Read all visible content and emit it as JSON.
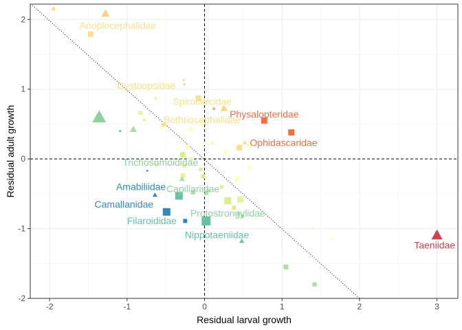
{
  "chart_data": {
    "type": "scatter",
    "title": "",
    "xlabel": "Residual larval growth",
    "ylabel": "Residual adult growth",
    "xlim": [
      -2.25,
      3.27
    ],
    "ylim": [
      -2.0,
      2.22
    ],
    "xticks": [
      -2,
      -1,
      0,
      1,
      2,
      3
    ],
    "yticks": [
      -2,
      -1,
      0,
      1,
      2
    ],
    "x_tick_labels": [
      "-2",
      "-1",
      "0",
      "1",
      "2",
      "3"
    ],
    "y_tick_labels": [
      "-2",
      "-1",
      "0",
      "1",
      "2"
    ],
    "grid": true,
    "legend": "none",
    "reference_lines": {
      "vertical_x": 0,
      "horizontal_y": 0,
      "diagonal": {
        "x": [
          -2.22,
          2.0
        ],
        "y": [
          2.2,
          -2.0
        ],
        "style": "dotted"
      }
    },
    "points": [
      {
        "x": -1.95,
        "y": 2.15,
        "shape": "square",
        "size": 5,
        "color": "#FEE08B"
      },
      {
        "x": -1.28,
        "y": 2.08,
        "shape": "triangle",
        "size": 12,
        "color": "#FDD27A"
      },
      {
        "x": -1.47,
        "y": 1.79,
        "shape": "square",
        "size": 8,
        "color": "#FEE08B"
      },
      {
        "x": -1.36,
        "y": 0.59,
        "shape": "triangle",
        "size": 20,
        "color": "#8FD19E"
      },
      {
        "x": -0.92,
        "y": 0.42,
        "shape": "triangle",
        "size": 10,
        "color": "#ABDDA4"
      },
      {
        "x": -1.09,
        "y": 0.4,
        "shape": "triangle",
        "size": 4,
        "color": "#66BD7A"
      },
      {
        "x": -0.63,
        "y": 0.87,
        "shape": "triangle",
        "size": 6,
        "color": "#F3F59C"
      },
      {
        "x": -0.83,
        "y": 0.66,
        "shape": "square",
        "size": 6,
        "color": "#E6F598"
      },
      {
        "x": -0.78,
        "y": 0.56,
        "shape": "square",
        "size": 4,
        "color": "#E6F598"
      },
      {
        "x": -0.53,
        "y": 0.49,
        "shape": "circle",
        "size": 6,
        "color": "#FEE08B"
      },
      {
        "x": -0.56,
        "y": 0.45,
        "shape": "circle",
        "size": 5,
        "color": "#FFFFBF"
      },
      {
        "x": -0.27,
        "y": 1.13,
        "shape": "circle",
        "size": 3,
        "color": "#FDD27A"
      },
      {
        "x": -0.26,
        "y": 1.07,
        "shape": "circle",
        "size": 3,
        "color": "#FDD27A"
      },
      {
        "x": -0.08,
        "y": 0.87,
        "shape": "square",
        "size": 8,
        "color": "#FEE08B"
      },
      {
        "x": 0.12,
        "y": 0.72,
        "shape": "circle",
        "size": 4,
        "color": "#FDAE61"
      },
      {
        "x": 0.25,
        "y": 0.72,
        "shape": "triangle",
        "size": 10,
        "color": "#FDD27A"
      },
      {
        "x": -0.17,
        "y": 0.42,
        "shape": "square",
        "size": 6,
        "color": "#FFFFBF"
      },
      {
        "x": -0.05,
        "y": 0.52,
        "shape": "circle",
        "size": 8,
        "color": "#FFFFBF"
      },
      {
        "x": 0.77,
        "y": 0.55,
        "shape": "square",
        "size": 9,
        "color": "#F46D43"
      },
      {
        "x": 1.12,
        "y": 0.38,
        "shape": "square",
        "size": 9,
        "color": "#F46D43"
      },
      {
        "x": -0.25,
        "y": 0.33,
        "shape": "circle",
        "size": 4,
        "color": "#FFFFBF"
      },
      {
        "x": -0.22,
        "y": 0.18,
        "shape": "square",
        "size": 6,
        "color": "#FFFFBF"
      },
      {
        "x": -0.01,
        "y": 0.22,
        "shape": "circle",
        "size": 5,
        "color": "#F7FCB9"
      },
      {
        "x": 0.1,
        "y": 0.23,
        "shape": "circle",
        "size": 5,
        "color": "#F7FCB9"
      },
      {
        "x": -0.28,
        "y": 0.06,
        "shape": "circle",
        "size": 9,
        "color": "#D9EF8B"
      },
      {
        "x": -0.18,
        "y": 0.0,
        "shape": "square",
        "size": 5,
        "color": "#E6F598"
      },
      {
        "x": 0.27,
        "y": 0.1,
        "shape": "circle",
        "size": 7,
        "color": "#FFFFBF"
      },
      {
        "x": 0.44,
        "y": 0.18,
        "shape": "triangle",
        "size": 9,
        "color": "#FFF3A8"
      },
      {
        "x": 0.52,
        "y": 0.23,
        "shape": "triangle",
        "size": 7,
        "color": "#FEE08B"
      },
      {
        "x": 0.45,
        "y": 0.16,
        "shape": "square",
        "size": 8,
        "color": "#FEE08B"
      },
      {
        "x": 0.57,
        "y": 0.18,
        "shape": "square",
        "size": 5,
        "color": "#FFFFBF"
      },
      {
        "x": 0.58,
        "y": -0.13,
        "shape": "square",
        "size": 6,
        "color": "#FFFFBF"
      },
      {
        "x": -0.26,
        "y": -0.1,
        "shape": "square",
        "size": 6,
        "color": "#E6F598"
      },
      {
        "x": -0.62,
        "y": -0.08,
        "shape": "square",
        "size": 5,
        "color": "#E6F598"
      },
      {
        "x": -0.74,
        "y": -0.17,
        "shape": "square",
        "size": 3,
        "color": "#5FB594"
      },
      {
        "x": -0.05,
        "y": -0.15,
        "shape": "circle",
        "size": 6,
        "color": "#D9EF8B"
      },
      {
        "x": -0.28,
        "y": -0.24,
        "shape": "square",
        "size": 7,
        "color": "#E6F598"
      },
      {
        "x": -0.02,
        "y": -0.25,
        "shape": "square",
        "size": 6,
        "color": "#D9EF8B"
      },
      {
        "x": -0.29,
        "y": -0.29,
        "shape": "triangle",
        "size": 8,
        "color": "#ABDDA4"
      },
      {
        "x": 0.42,
        "y": -0.28,
        "shape": "circle",
        "size": 8,
        "color": "#FFFFBF"
      },
      {
        "x": -0.64,
        "y": -0.52,
        "shape": "triangle",
        "size": 7,
        "color": "#3288BD"
      },
      {
        "x": -0.33,
        "y": -0.53,
        "shape": "square",
        "size": 11,
        "color": "#66C2A5"
      },
      {
        "x": -0.15,
        "y": -0.48,
        "shape": "square",
        "size": 6,
        "color": "#ABDDA4"
      },
      {
        "x": 0.02,
        "y": -0.49,
        "shape": "triangle",
        "size": 8,
        "color": "#ABDDA4"
      },
      {
        "x": 0.05,
        "y": -0.46,
        "shape": "square",
        "size": 5,
        "color": "#B7E4A8"
      },
      {
        "x": 0.22,
        "y": -0.4,
        "shape": "square",
        "size": 5,
        "color": "#D9EF8B"
      },
      {
        "x": 0.3,
        "y": -0.6,
        "shape": "square",
        "size": 10,
        "color": "#D9EF8B"
      },
      {
        "x": 0.46,
        "y": -0.58,
        "shape": "square",
        "size": 9,
        "color": "#E6F598"
      },
      {
        "x": 0.38,
        "y": -0.7,
        "shape": "square",
        "size": 6,
        "color": "#D9EF8B"
      },
      {
        "x": 0.44,
        "y": -0.78,
        "shape": "triangle",
        "size": 7,
        "color": "#ABDDA4"
      },
      {
        "x": 0.49,
        "y": -0.82,
        "shape": "square",
        "size": 5,
        "color": "#ABDDA4"
      },
      {
        "x": -0.49,
        "y": -0.76,
        "shape": "square",
        "size": 11,
        "color": "#3288BD"
      },
      {
        "x": -0.25,
        "y": -0.89,
        "shape": "square",
        "size": 6,
        "color": "#3288BD"
      },
      {
        "x": 0.02,
        "y": -0.89,
        "shape": "square",
        "size": 13,
        "color": "#66C2A5"
      },
      {
        "x": 1.39,
        "y": -1.0,
        "shape": "circle",
        "size": 3,
        "color": "#FFF3A8"
      },
      {
        "x": 1.64,
        "y": -1.14,
        "shape": "triangle",
        "size": 6,
        "color": "#FFFFBF"
      },
      {
        "x": 0.48,
        "y": -1.18,
        "shape": "triangle",
        "size": 7,
        "color": "#66C2A5"
      },
      {
        "x": 3.0,
        "y": -1.1,
        "shape": "triangle",
        "size": 16,
        "color": "#D53E4F"
      },
      {
        "x": 1.05,
        "y": -1.55,
        "shape": "square",
        "size": 7,
        "color": "#ABDDA4"
      },
      {
        "x": 1.42,
        "y": -1.8,
        "shape": "square",
        "size": 6,
        "color": "#ABDDA4"
      }
    ],
    "annotations": [
      {
        "text": "Anoplocephalidae",
        "x": -1.12,
        "y": 1.9,
        "color": "#FEE08B"
      },
      {
        "text": "Cystoopsidae",
        "x": -0.75,
        "y": 1.04,
        "color": "#FEE08B"
      },
      {
        "text": "Spirocercidae",
        "x": -0.03,
        "y": 0.81,
        "color": "#FEE08B"
      },
      {
        "text": "Physalopteridae",
        "x": 0.77,
        "y": 0.63,
        "color": "#F46D43"
      },
      {
        "text": "Bothriocephalidae",
        "x": -0.03,
        "y": 0.55,
        "color": "#FEE08B"
      },
      {
        "text": "Ophidascaridae",
        "x": 1.02,
        "y": 0.22,
        "color": "#F46D43"
      },
      {
        "text": "Trichosomoididae",
        "x": -0.57,
        "y": -0.06,
        "color": "#8FD19E"
      },
      {
        "text": "Amabiliidae",
        "x": -0.82,
        "y": -0.41,
        "color": "#3288BD"
      },
      {
        "text": "Capillariidae",
        "x": -0.15,
        "y": -0.44,
        "color": "#8FD19E"
      },
      {
        "text": "Camallanidae",
        "x": -1.04,
        "y": -0.66,
        "color": "#3288BD"
      },
      {
        "text": "Protostrongylidae",
        "x": 0.3,
        "y": -0.79,
        "color": "#8FD19E"
      },
      {
        "text": "Filaroididae",
        "x": -0.68,
        "y": -0.9,
        "color": "#66C2A5"
      },
      {
        "text": "Nippotaeniidae",
        "x": 0.16,
        "y": -1.1,
        "color": "#66C2A5"
      },
      {
        "text": "Taeniidae",
        "x": 2.97,
        "y": -1.25,
        "color": "#D53E4F"
      }
    ]
  }
}
